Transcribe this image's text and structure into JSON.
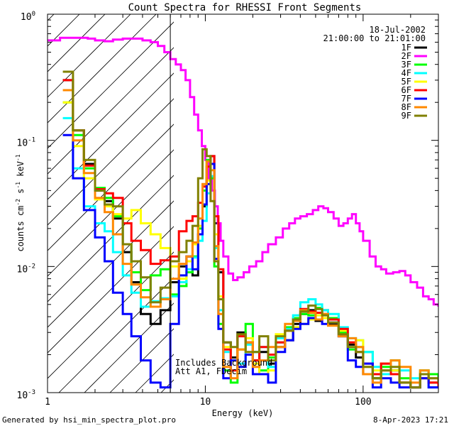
{
  "chart_data": {
    "type": "line",
    "title": "Count Spectra for RHESSI Front Segments",
    "xlabel": "Energy (keV)",
    "ylabel_main": "counts cm",
    "ylabel_exp1": "-2",
    "ylabel_mid": " s",
    "ylabel_exp2": "-1",
    "ylabel_tail": " keV",
    "ylabel_exp3": "-1",
    "x_scale": "log",
    "y_scale": "log",
    "xlim": [
      1,
      300
    ],
    "ylim": [
      0.001,
      1
    ],
    "x_ticks": [
      {
        "value": 1,
        "label": "1"
      },
      {
        "value": 10,
        "label": "10"
      },
      {
        "value": 100,
        "label": "100"
      }
    ],
    "y_ticks": [
      {
        "value": 1,
        "base": "10",
        "exp": "0"
      },
      {
        "value": 0.1,
        "base": "10",
        "exp": "-1"
      },
      {
        "value": 0.01,
        "base": "10",
        "exp": "-2"
      },
      {
        "value": 0.001,
        "base": "10",
        "exp": "-3"
      }
    ],
    "date": "18-Jul-2002",
    "time_range": "21:00:00 to 21:01:00",
    "hatched_region_upper_keV": 6,
    "annotations": [
      "Includes Background",
      "Att A1, FDecim"
    ],
    "series": [
      {
        "name": "1F",
        "color": "#000000",
        "x": [
          1.25,
          1.45,
          1.7,
          2.0,
          2.3,
          2.6,
          3.0,
          3.4,
          3.9,
          4.5,
          5.2,
          6.0,
          6.8,
          7.6,
          8.3,
          9.0,
          9.6,
          10.2,
          10.8,
          11.4,
          12.1,
          13.0,
          14.5,
          16,
          18,
          20,
          22,
          25,
          28,
          32,
          36,
          40,
          45,
          50,
          55,
          60,
          70,
          80,
          90,
          100,
          115,
          130,
          150,
          170,
          200,
          230,
          260,
          300
        ],
        "y": [
          0.3,
          0.12,
          0.065,
          0.04,
          0.033,
          0.024,
          0.013,
          0.0075,
          0.0042,
          0.0035,
          0.0045,
          0.0075,
          0.01,
          0.012,
          0.0085,
          0.018,
          0.03,
          0.05,
          0.075,
          0.022,
          0.009,
          0.0025,
          0.0019,
          0.003,
          0.0025,
          0.0018,
          0.0021,
          0.0017,
          0.0023,
          0.0026,
          0.0035,
          0.0042,
          0.0045,
          0.0037,
          0.0045,
          0.0035,
          0.0028,
          0.0024,
          0.0019,
          0.0014,
          0.0013,
          0.0017,
          0.0015,
          0.0012,
          0.0011,
          0.0014,
          0.0012,
          0.0011
        ]
      },
      {
        "name": "2F",
        "color": "#ff00ff",
        "x": [
          1.0,
          1.2,
          1.4,
          1.6,
          1.8,
          2.0,
          2.3,
          2.6,
          3.0,
          3.5,
          4.0,
          4.5,
          5.0,
          5.5,
          6.0,
          6.5,
          7.0,
          7.5,
          8.0,
          8.5,
          9.0,
          9.5,
          10.0,
          10.5,
          11.0,
          11.5,
          12.0,
          12.5,
          13.0,
          14.0,
          15.0,
          16.0,
          17.5,
          19,
          21,
          23,
          25,
          28,
          31,
          34,
          37,
          40,
          44,
          48,
          52,
          56,
          60,
          65,
          70,
          75,
          80,
          85,
          90,
          95,
          100,
          110,
          120,
          130,
          140,
          155,
          170,
          185,
          200,
          220,
          240,
          260,
          280,
          300
        ],
        "y": [
          0.62,
          0.65,
          0.65,
          0.65,
          0.64,
          0.62,
          0.61,
          0.63,
          0.64,
          0.64,
          0.62,
          0.6,
          0.56,
          0.5,
          0.44,
          0.4,
          0.36,
          0.3,
          0.22,
          0.16,
          0.12,
          0.09,
          0.07,
          0.05,
          0.04,
          0.03,
          0.022,
          0.016,
          0.012,
          0.0088,
          0.0078,
          0.0082,
          0.009,
          0.01,
          0.011,
          0.013,
          0.015,
          0.017,
          0.02,
          0.022,
          0.024,
          0.025,
          0.026,
          0.028,
          0.03,
          0.029,
          0.027,
          0.024,
          0.021,
          0.022,
          0.024,
          0.026,
          0.022,
          0.019,
          0.016,
          0.012,
          0.01,
          0.0095,
          0.0088,
          0.009,
          0.0092,
          0.0085,
          0.0075,
          0.0068,
          0.0058,
          0.0055,
          0.005,
          0.0048
        ]
      },
      {
        "name": "3F",
        "color": "#00ff00",
        "x": [
          1.25,
          1.45,
          1.7,
          2.0,
          2.3,
          2.6,
          3.0,
          3.4,
          3.9,
          4.5,
          5.2,
          6.0,
          6.8,
          7.6,
          8.3,
          9.0,
          9.6,
          10.2,
          10.8,
          11.4,
          12.1,
          13.0,
          14.5,
          16,
          18,
          20,
          22,
          25,
          28,
          32,
          36,
          40,
          45,
          50,
          55,
          60,
          70,
          80,
          90,
          100,
          115,
          130,
          150,
          170,
          200,
          230,
          260,
          300
        ],
        "y": [
          0.2,
          0.11,
          0.06,
          0.042,
          0.035,
          0.025,
          0.015,
          0.009,
          0.0065,
          0.0085,
          0.0095,
          0.006,
          0.007,
          0.009,
          0.012,
          0.02,
          0.04,
          0.07,
          0.05,
          0.01,
          0.0035,
          0.0015,
          0.0012,
          0.0022,
          0.0035,
          0.0021,
          0.0015,
          0.0019,
          0.0025,
          0.0033,
          0.0039,
          0.0042,
          0.0041,
          0.0047,
          0.0039,
          0.0039,
          0.003,
          0.0022,
          0.0023,
          0.0021,
          0.0013,
          0.0016,
          0.0018,
          0.0013,
          0.0011,
          0.0015,
          0.0014,
          0.0012
        ]
      },
      {
        "name": "4F",
        "color": "#00ffff",
        "x": [
          1.25,
          1.45,
          1.7,
          2.0,
          2.3,
          2.6,
          3.0,
          3.4,
          3.9,
          4.5,
          5.2,
          6.0,
          6.8,
          7.6,
          8.3,
          9.0,
          9.6,
          10.2,
          10.8,
          11.4,
          12.1,
          13.0,
          14.5,
          16,
          18,
          20,
          22,
          25,
          28,
          32,
          36,
          40,
          45,
          50,
          55,
          60,
          70,
          80,
          90,
          100,
          115,
          130,
          150,
          170,
          200,
          230,
          260,
          300
        ],
        "y": [
          0.15,
          0.06,
          0.03,
          0.022,
          0.019,
          0.013,
          0.0085,
          0.0062,
          0.0048,
          0.0053,
          0.0056,
          0.0058,
          0.0075,
          0.0095,
          0.0118,
          0.016,
          0.023,
          0.038,
          0.052,
          0.014,
          0.0045,
          0.0021,
          0.0015,
          0.0017,
          0.0024,
          0.0021,
          0.0023,
          0.0016,
          0.0027,
          0.0032,
          0.0041,
          0.0052,
          0.0055,
          0.005,
          0.0045,
          0.0042,
          0.0033,
          0.0027,
          0.0026,
          0.0021,
          0.0016,
          0.0014,
          0.0014,
          0.0015,
          0.0013,
          0.0014,
          0.0011,
          0.0011
        ]
      },
      {
        "name": "5F",
        "color": "#ffff00",
        "x": [
          1.25,
          1.45,
          1.7,
          2.0,
          2.3,
          2.6,
          3.0,
          3.4,
          3.9,
          4.5,
          5.2,
          6.0,
          6.8,
          7.6,
          8.3,
          9.0,
          9.6,
          10.2,
          10.8,
          11.4,
          12.1,
          13.0,
          14.5,
          16,
          18,
          20,
          22,
          25,
          28,
          32,
          36,
          40,
          45,
          50,
          55,
          60,
          70,
          80,
          90,
          100,
          115,
          130,
          150,
          170,
          200,
          230,
          260,
          300
        ],
        "y": [
          0.2,
          0.09,
          0.05,
          0.034,
          0.03,
          0.026,
          0.024,
          0.028,
          0.022,
          0.018,
          0.014,
          0.01,
          0.008,
          0.011,
          0.015,
          0.021,
          0.031,
          0.048,
          0.065,
          0.018,
          0.0058,
          0.0023,
          0.0018,
          0.0022,
          0.0027,
          0.0017,
          0.0014,
          0.0015,
          0.0029,
          0.0031,
          0.0033,
          0.0035,
          0.0038,
          0.0041,
          0.0039,
          0.0034,
          0.0031,
          0.0025,
          0.0026,
          0.0016,
          0.0015,
          0.0017,
          0.0015,
          0.0012,
          0.0011,
          0.0014,
          0.0012,
          0.0011
        ]
      },
      {
        "name": "6F",
        "color": "#ff0000",
        "x": [
          1.25,
          1.45,
          1.7,
          2.0,
          2.3,
          2.6,
          3.0,
          3.4,
          3.9,
          4.5,
          5.2,
          6.0,
          6.8,
          7.6,
          8.3,
          9.0,
          9.6,
          10.2,
          10.8,
          11.4,
          12.1,
          13.0,
          14.5,
          16,
          18,
          20,
          22,
          25,
          28,
          32,
          36,
          40,
          45,
          50,
          55,
          60,
          70,
          80,
          90,
          100,
          115,
          130,
          150,
          170,
          200,
          230,
          260,
          300
        ],
        "y": [
          0.3,
          0.12,
          0.063,
          0.041,
          0.038,
          0.035,
          0.022,
          0.016,
          0.0135,
          0.0105,
          0.0112,
          0.012,
          0.019,
          0.023,
          0.025,
          0.032,
          0.043,
          0.062,
          0.075,
          0.025,
          0.0095,
          0.0022,
          0.0015,
          0.0028,
          0.0025,
          0.0018,
          0.0023,
          0.002,
          0.0025,
          0.0031,
          0.0038,
          0.0046,
          0.0044,
          0.0043,
          0.0042,
          0.0038,
          0.0032,
          0.0025,
          0.0021,
          0.0017,
          0.0014,
          0.0017,
          0.0014,
          0.0012,
          0.0011,
          0.0013,
          0.0012,
          0.0011
        ]
      },
      {
        "name": "7F",
        "color": "#0000ff",
        "x": [
          1.25,
          1.45,
          1.7,
          2.0,
          2.3,
          2.6,
          3.0,
          3.4,
          3.9,
          4.5,
          5.2,
          6.0,
          6.8,
          7.6,
          8.3,
          9.0,
          9.6,
          10.2,
          10.8,
          11.4,
          12.1,
          13.0,
          14.5,
          16,
          18,
          20,
          22,
          25,
          28,
          32,
          36,
          40,
          45,
          50,
          55,
          60,
          70,
          80,
          90,
          100,
          115,
          130,
          150,
          170,
          200,
          230,
          260,
          300
        ],
        "y": [
          0.11,
          0.05,
          0.028,
          0.017,
          0.011,
          0.0062,
          0.0042,
          0.0028,
          0.0018,
          0.0012,
          0.0011,
          0.0035,
          0.0085,
          0.012,
          0.0095,
          0.018,
          0.031,
          0.045,
          0.065,
          0.0115,
          0.0032,
          0.0013,
          0.0018,
          0.0016,
          0.002,
          0.0014,
          0.0014,
          0.0012,
          0.0021,
          0.0026,
          0.0032,
          0.0035,
          0.0039,
          0.0038,
          0.0035,
          0.0036,
          0.0028,
          0.0018,
          0.0016,
          0.0017,
          0.0011,
          0.0013,
          0.0012,
          0.0011,
          0.0011,
          0.0013,
          0.0011,
          0.0011
        ]
      },
      {
        "name": "8F",
        "color": "#ff8800",
        "x": [
          1.25,
          1.45,
          1.7,
          2.0,
          2.3,
          2.6,
          3.0,
          3.4,
          3.9,
          4.5,
          5.2,
          6.0,
          6.8,
          7.6,
          8.3,
          9.0,
          9.6,
          10.2,
          10.8,
          11.4,
          12.1,
          13.0,
          14.5,
          16,
          18,
          20,
          22,
          25,
          28,
          32,
          36,
          40,
          45,
          50,
          55,
          60,
          70,
          80,
          90,
          100,
          115,
          130,
          150,
          170,
          200,
          230,
          260,
          300
        ],
        "y": [
          0.25,
          0.1,
          0.055,
          0.035,
          0.027,
          0.018,
          0.0105,
          0.0072,
          0.0057,
          0.0048,
          0.0055,
          0.008,
          0.0105,
          0.012,
          0.0155,
          0.024,
          0.045,
          0.068,
          0.058,
          0.0145,
          0.0042,
          0.0016,
          0.0013,
          0.0022,
          0.0025,
          0.0016,
          0.0018,
          0.0023,
          0.0023,
          0.0035,
          0.0037,
          0.0045,
          0.0043,
          0.0038,
          0.0042,
          0.0034,
          0.0028,
          0.0027,
          0.0023,
          0.0014,
          0.0012,
          0.0015,
          0.0018,
          0.0016,
          0.0012,
          0.0015,
          0.0013,
          0.0012
        ]
      },
      {
        "name": "9F",
        "color": "#808000",
        "x": [
          1.25,
          1.45,
          1.7,
          2.0,
          2.3,
          2.6,
          3.0,
          3.4,
          3.9,
          4.5,
          5.2,
          6.0,
          6.8,
          7.6,
          8.3,
          9.0,
          9.6,
          10.2,
          10.8,
          11.4,
          12.1,
          13.0,
          14.5,
          16,
          18,
          20,
          22,
          25,
          28,
          32,
          36,
          40,
          45,
          50,
          55,
          60,
          70,
          80,
          90,
          100,
          115,
          130,
          150,
          170,
          200,
          230,
          260,
          300
        ],
        "y": [
          0.35,
          0.12,
          0.07,
          0.04,
          0.031,
          0.03,
          0.015,
          0.011,
          0.0082,
          0.0052,
          0.0068,
          0.011,
          0.013,
          0.016,
          0.021,
          0.05,
          0.085,
          0.075,
          0.033,
          0.011,
          0.0055,
          0.0025,
          0.0023,
          0.0029,
          0.0021,
          0.0021,
          0.0028,
          0.0018,
          0.0028,
          0.0031,
          0.0038,
          0.0044,
          0.0049,
          0.0046,
          0.0041,
          0.0036,
          0.0029,
          0.0023,
          0.0021,
          0.0016,
          0.0013,
          0.0015,
          0.0016,
          0.0012,
          0.0011,
          0.0014,
          0.0013,
          0.0012
        ]
      }
    ]
  },
  "footer": {
    "generated_by": "Generated by hsi_min_spectra_plot.pro",
    "timestamp": "8-Apr-2023 17:21"
  }
}
